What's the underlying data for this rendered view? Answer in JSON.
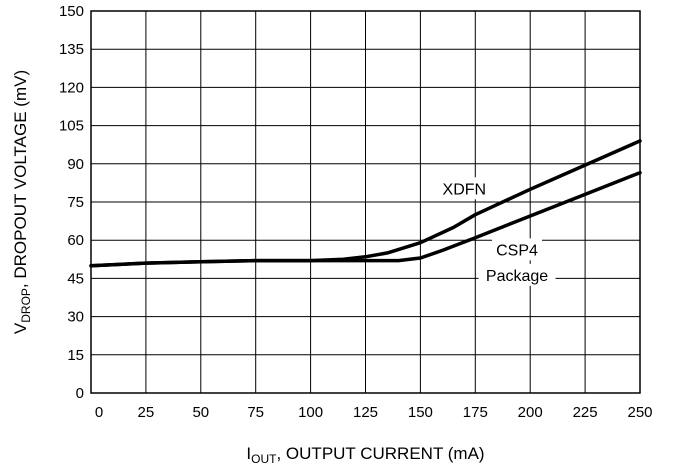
{
  "chart_data": {
    "type": "line",
    "title": "",
    "xlabel": {
      "main": "I",
      "sub": "OUT",
      "rest": ", OUTPUT CURRENT (mA)"
    },
    "ylabel": {
      "main": "V",
      "sub": "DROP",
      "rest": ", DROPOUT VOLTAGE (mV)"
    },
    "xlim": [
      0,
      250
    ],
    "ylim": [
      0,
      150
    ],
    "x_ticks": [
      0,
      25,
      50,
      75,
      100,
      125,
      150,
      175,
      200,
      225,
      250
    ],
    "y_ticks": [
      0,
      15,
      30,
      45,
      60,
      75,
      90,
      105,
      120,
      135,
      150
    ],
    "grid": true,
    "series": [
      {
        "name": "XDFN",
        "points": [
          [
            0,
            50
          ],
          [
            25,
            51
          ],
          [
            50,
            51.5
          ],
          [
            75,
            52
          ],
          [
            100,
            52
          ],
          [
            115,
            52.5
          ],
          [
            125,
            53.5
          ],
          [
            135,
            55
          ],
          [
            150,
            59
          ],
          [
            165,
            65
          ],
          [
            175,
            70
          ],
          [
            200,
            80
          ],
          [
            225,
            89.5
          ],
          [
            250,
            99
          ]
        ]
      },
      {
        "name": "CSP4 Package",
        "points": [
          [
            0,
            50
          ],
          [
            25,
            51
          ],
          [
            50,
            51.5
          ],
          [
            75,
            52
          ],
          [
            100,
            52
          ],
          [
            125,
            52
          ],
          [
            140,
            52
          ],
          [
            150,
            53
          ],
          [
            160,
            56
          ],
          [
            175,
            61
          ],
          [
            200,
            69.5
          ],
          [
            225,
            78
          ],
          [
            250,
            86.5
          ]
        ]
      }
    ],
    "annotations": [
      {
        "text": "XDFN",
        "x": 170,
        "y": 80
      },
      {
        "text": "CSP4",
        "x": 194,
        "y": 56
      },
      {
        "text": "Package",
        "x": 194,
        "y": 46
      }
    ]
  }
}
